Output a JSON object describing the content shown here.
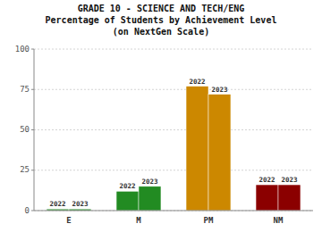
{
  "chart_data": {
    "type": "bar",
    "title": "GRADE 10 - SCIENCE AND TECH/ENG\nPercentage of Students by Achievement Level\n(on NextGen Scale)",
    "categories": [
      "E",
      "M",
      "PM",
      "NM"
    ],
    "series": [
      {
        "name": "2022",
        "colors": [
          "#228B22",
          "#228B22",
          "#CC8800",
          "#8B0000"
        ],
        "values": [
          1,
          12,
          77,
          16
        ]
      },
      {
        "name": "2023",
        "colors": [
          "#228B22",
          "#228B22",
          "#CC8800",
          "#8B0000"
        ],
        "values": [
          1,
          15,
          72,
          16
        ]
      }
    ],
    "ylim": [
      0,
      100
    ],
    "yticks": [
      0,
      25,
      50,
      75,
      100
    ],
    "grid": true
  }
}
